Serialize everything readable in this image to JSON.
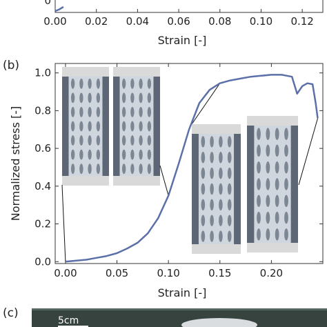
{
  "chart_data": [
    {
      "panel_label": "",
      "type": "line",
      "xlabel": "Strain [-]",
      "ylabel": "",
      "xlim": [
        0.0,
        0.13
      ],
      "x_ticks": [
        "0.00",
        "0.02",
        "0.04",
        "0.06",
        "0.08",
        "0.10",
        "0.12"
      ],
      "x_tick_values": [
        0.0,
        0.02,
        0.04,
        0.06,
        0.08,
        0.1,
        0.12
      ],
      "y_ticks": [
        "0"
      ],
      "y_tick_values": [
        0.0
      ],
      "color": "#5b6fa8",
      "series": [
        {
          "name": "",
          "x": [
            0.0,
            0.002,
            0.004
          ],
          "y": [
            0.0,
            0.02,
            0.05
          ]
        }
      ]
    },
    {
      "panel_label": "(b)",
      "type": "line",
      "xlabel": "Strain [-]",
      "ylabel": "Normalized stress [-]",
      "xlim": [
        -0.01,
        0.25
      ],
      "ylim": [
        -0.01,
        1.05
      ],
      "x_ticks": [
        "0.00",
        "0.05",
        "0.10",
        "0.15",
        "0.20"
      ],
      "x_tick_values": [
        0.0,
        0.05,
        0.1,
        0.15,
        0.2
      ],
      "y_ticks": [
        "0.0",
        "0.2",
        "0.4",
        "0.6",
        "0.8",
        "1.0"
      ],
      "y_tick_values": [
        0.0,
        0.2,
        0.4,
        0.6,
        0.8,
        1.0
      ],
      "color": "#5b6fa8",
      "series": [
        {
          "name": "",
          "x": [
            0.0,
            0.01,
            0.02,
            0.03,
            0.04,
            0.05,
            0.06,
            0.07,
            0.08,
            0.09,
            0.1,
            0.11,
            0.12,
            0.13,
            0.14,
            0.15,
            0.16,
            0.17,
            0.18,
            0.19,
            0.2,
            0.21,
            0.215,
            0.22,
            0.225,
            0.23,
            0.235,
            0.24,
            0.243,
            0.245
          ],
          "y": [
            0.0,
            0.005,
            0.01,
            0.02,
            0.03,
            0.045,
            0.07,
            0.1,
            0.15,
            0.23,
            0.35,
            0.52,
            0.7,
            0.84,
            0.91,
            0.945,
            0.96,
            0.97,
            0.98,
            0.985,
            0.99,
            0.99,
            0.985,
            0.98,
            0.89,
            0.93,
            0.945,
            0.94,
            0.84,
            0.76
          ]
        }
      ]
    },
    {
      "panel_label": "(c)",
      "type": "photo",
      "scale_label": "5cm"
    }
  ]
}
